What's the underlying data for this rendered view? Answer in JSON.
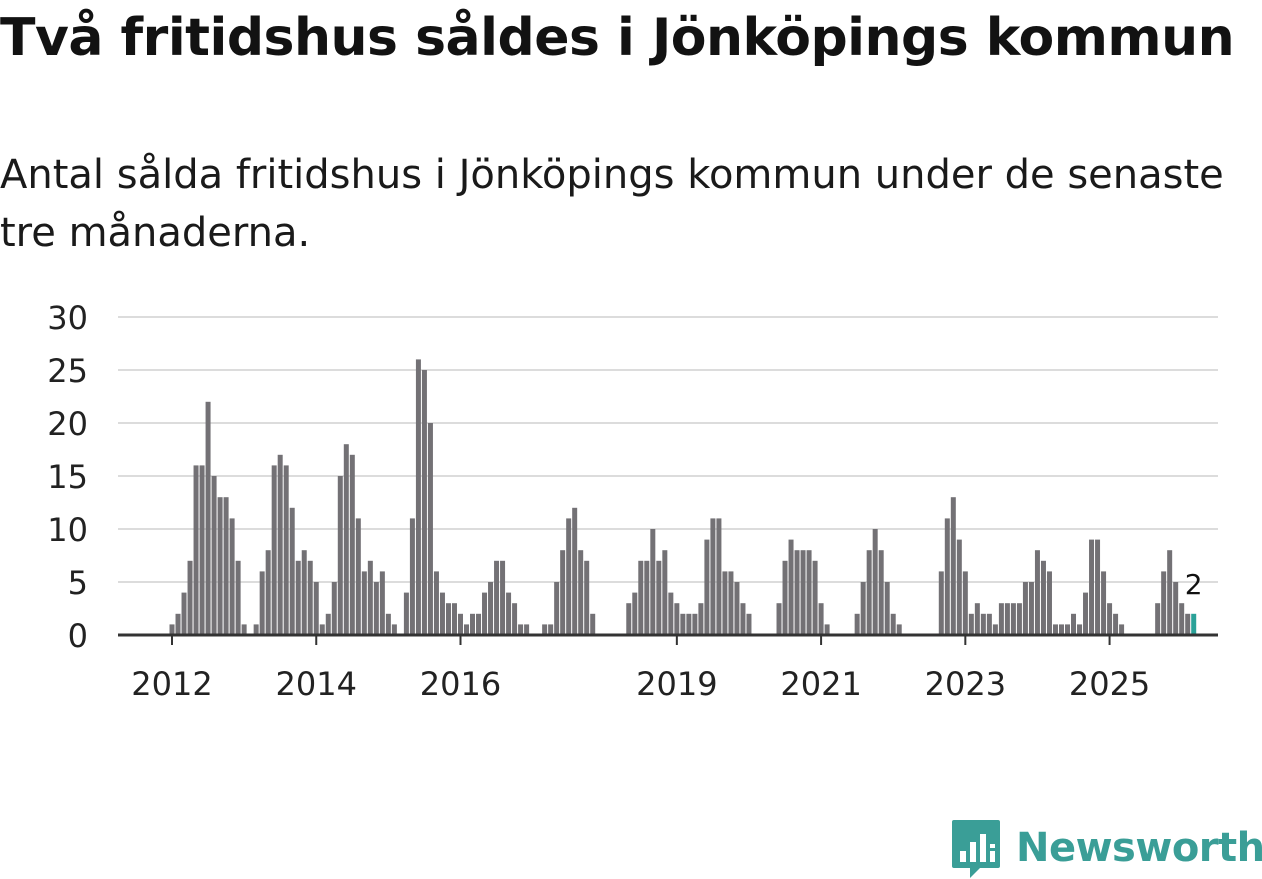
{
  "title": "Två fritidshus såldes i Jönköpings kommun",
  "subtitle": "Antal sålda fritidshus i Jönköpings kommun under de senaste tre månaderna.",
  "brand": {
    "name": "Newsworthy",
    "color": "#3a9e97",
    "icon": "newsworthy-logo-icon"
  },
  "colors": {
    "bar": "#737175",
    "highlight": "#2aa198",
    "grid": "#dcdcdc",
    "axis": "#333333"
  },
  "chart_data": {
    "type": "bar",
    "x_unit": "month",
    "start": "2011-12",
    "values": [
      0,
      1,
      2,
      4,
      7,
      16,
      16,
      22,
      15,
      13,
      13,
      11,
      7,
      1,
      0,
      1,
      6,
      8,
      16,
      17,
      16,
      12,
      7,
      8,
      7,
      5,
      1,
      2,
      5,
      15,
      18,
      17,
      11,
      6,
      7,
      5,
      6,
      2,
      1,
      0,
      4,
      11,
      26,
      25,
      20,
      6,
      4,
      3,
      3,
      2,
      1,
      2,
      2,
      4,
      5,
      7,
      7,
      4,
      3,
      1,
      1,
      0,
      0,
      1,
      1,
      5,
      8,
      11,
      12,
      8,
      7,
      2,
      0,
      0,
      0,
      0,
      0,
      3,
      4,
      7,
      7,
      10,
      7,
      8,
      4,
      3,
      2,
      2,
      2,
      3,
      9,
      11,
      11,
      6,
      6,
      5,
      3,
      2,
      0,
      0,
      0,
      0,
      3,
      7,
      9,
      8,
      8,
      8,
      7,
      3,
      1,
      0,
      0,
      0,
      0,
      2,
      5,
      8,
      10,
      8,
      5,
      2,
      1,
      0,
      0,
      0,
      0,
      0,
      0,
      6,
      11,
      13,
      9,
      6,
      2,
      3,
      2,
      2,
      1,
      3,
      3,
      3,
      3,
      5,
      5,
      8,
      7,
      6,
      1,
      1,
      1,
      2,
      1,
      4,
      9,
      9,
      6,
      3,
      2,
      1,
      0,
      0,
      0,
      0,
      0,
      3,
      6,
      8,
      5,
      3,
      2,
      2
    ],
    "highlight_last": true,
    "last_value_label": "2",
    "x_ticks": [
      {
        "label": "2012",
        "index": 1
      },
      {
        "label": "2014",
        "index": 25
      },
      {
        "label": "2016",
        "index": 49
      },
      {
        "label": "2019",
        "index": 85
      },
      {
        "label": "2021",
        "index": 109
      },
      {
        "label": "2023",
        "index": 133
      },
      {
        "label": "2025",
        "index": 157
      }
    ],
    "y_ticks": [
      0,
      5,
      10,
      15,
      20,
      25,
      30
    ],
    "ylim": [
      0,
      30
    ],
    "grid": true,
    "legend": "none"
  }
}
